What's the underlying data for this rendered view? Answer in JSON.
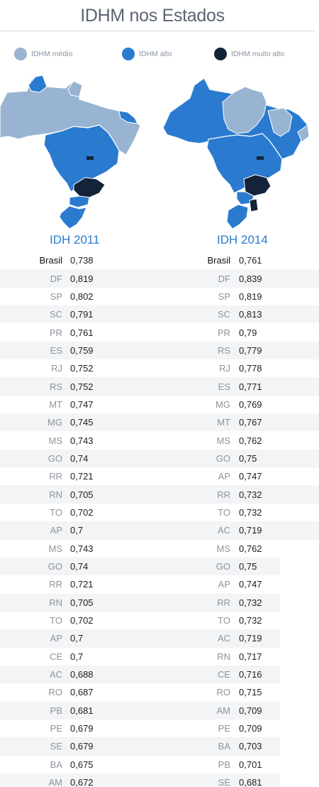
{
  "title": "IDHM nos Estados",
  "legend": [
    {
      "label": "IDHM médio",
      "color": "#98b4d2"
    },
    {
      "label": "IDHM alto",
      "color": "#2a7bd0"
    },
    {
      "label": "IDHM muito alto",
      "color": "#13233a"
    }
  ],
  "chart_data": {
    "type": "table",
    "columns": [
      {
        "title": "IDH 2011",
        "rows": [
          {
            "state": "Brasil",
            "value": "0,738"
          },
          {
            "state": "DF",
            "value": "0,819"
          },
          {
            "state": "SP",
            "value": "0,802"
          },
          {
            "state": "SC",
            "value": "0,791"
          },
          {
            "state": "PR",
            "value": "0,761"
          },
          {
            "state": "ES",
            "value": "0,759"
          },
          {
            "state": "RJ",
            "value": "0,752"
          },
          {
            "state": "RS",
            "value": "0,752"
          },
          {
            "state": "MT",
            "value": "0,747"
          },
          {
            "state": "MG",
            "value": "0,745"
          },
          {
            "state": "MS",
            "value": "0,743"
          },
          {
            "state": "GO",
            "value": "0,74"
          },
          {
            "state": "RR",
            "value": "0,721"
          },
          {
            "state": "RN",
            "value": "0,705"
          },
          {
            "state": "TO",
            "value": "0,702"
          },
          {
            "state": "AP",
            "value": "0,7"
          },
          {
            "state": "MS",
            "value": "0,743"
          },
          {
            "state": "GO",
            "value": "0,74"
          },
          {
            "state": "RR",
            "value": "0,721"
          },
          {
            "state": "RN",
            "value": "0,705"
          },
          {
            "state": "TO",
            "value": "0,702"
          },
          {
            "state": "AP",
            "value": "0,7"
          },
          {
            "state": "CE",
            "value": "0,7"
          },
          {
            "state": "AC",
            "value": "0,688"
          },
          {
            "state": "RO",
            "value": "0,687"
          },
          {
            "state": "PB",
            "value": "0,681"
          },
          {
            "state": "PE",
            "value": "0,679"
          },
          {
            "state": "SE",
            "value": "0,679"
          },
          {
            "state": "BA",
            "value": "0,675"
          },
          {
            "state": "AM",
            "value": "0,672"
          }
        ]
      },
      {
        "title": "IDH 2014",
        "rows": [
          {
            "state": "Brasil",
            "value": "0,761"
          },
          {
            "state": "DF",
            "value": "0,839"
          },
          {
            "state": "SP",
            "value": "0,819"
          },
          {
            "state": "SC",
            "value": "0,813"
          },
          {
            "state": "PR",
            "value": "0,79"
          },
          {
            "state": "RS",
            "value": "0,779"
          },
          {
            "state": "RJ",
            "value": "0,778"
          },
          {
            "state": "ES",
            "value": "0,771"
          },
          {
            "state": "MG",
            "value": "0,769"
          },
          {
            "state": "MT",
            "value": "0,767"
          },
          {
            "state": "MS",
            "value": "0,762"
          },
          {
            "state": "GO",
            "value": "0,75"
          },
          {
            "state": "AP",
            "value": "0,747"
          },
          {
            "state": "RR",
            "value": "0,732"
          },
          {
            "state": "TO",
            "value": "0,732"
          },
          {
            "state": "AC",
            "value": "0,719"
          },
          {
            "state": "MS",
            "value": "0,762"
          },
          {
            "state": "GO",
            "value": "0,75"
          },
          {
            "state": "AP",
            "value": "0,747"
          },
          {
            "state": "RR",
            "value": "0,732"
          },
          {
            "state": "TO",
            "value": "0,732"
          },
          {
            "state": "AC",
            "value": "0,719"
          },
          {
            "state": "RN",
            "value": "0,717"
          },
          {
            "state": "CE",
            "value": "0,716"
          },
          {
            "state": "RO",
            "value": "0,715"
          },
          {
            "state": "AM",
            "value": "0,709"
          },
          {
            "state": "PE",
            "value": "0,709"
          },
          {
            "state": "BA",
            "value": "0,703"
          },
          {
            "state": "PB",
            "value": "0,701"
          },
          {
            "state": "SE",
            "value": "0,681"
          }
        ]
      }
    ]
  }
}
